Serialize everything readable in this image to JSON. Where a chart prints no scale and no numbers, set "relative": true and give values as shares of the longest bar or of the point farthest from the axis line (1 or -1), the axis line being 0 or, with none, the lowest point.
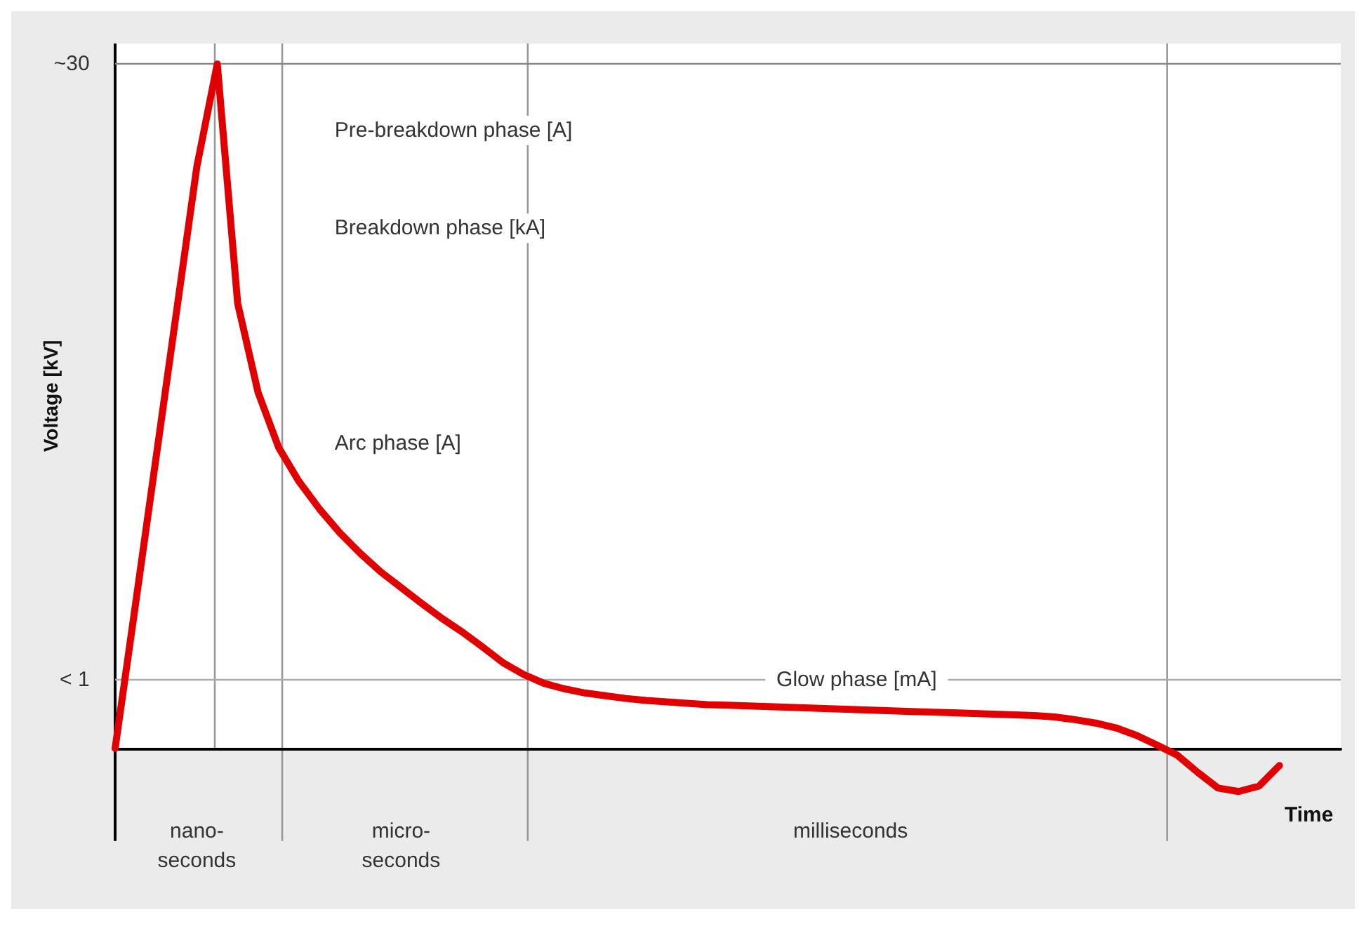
{
  "chart_data": {
    "type": "line",
    "relative": true,
    "xlabel": "Time",
    "ylabel": "Voltage [kV]",
    "categories": [
      null,
      null,
      null,
      null,
      "nano-\nseconds",
      null,
      null,
      null,
      null,
      null,
      null,
      null,
      null,
      null,
      "micro-\nseconds",
      null,
      null,
      null,
      null,
      null,
      null,
      null,
      null,
      null,
      null,
      null,
      null,
      null,
      null,
      null,
      null,
      null,
      null,
      null,
      null,
      null,
      "milliseconds",
      null,
      null,
      null,
      null,
      null,
      null,
      null,
      null,
      null,
      null,
      null,
      null,
      null,
      null,
      null,
      null,
      null,
      null,
      null,
      null,
      null,
      null,
      null,
      null
    ],
    "series": [
      {
        "color": "#e00000",
        "values": [
          0,
          0.211,
          0.424,
          0.637,
          0.85,
          1.0,
          0.65,
          0.52,
          0.44,
          0.39,
          0.35,
          0.315,
          0.285,
          0.258,
          0.235,
          0.212,
          0.19,
          0.17,
          0.148,
          0.125,
          0.108,
          0.095,
          0.087,
          0.081,
          0.077,
          0.073,
          0.07,
          0.068,
          0.066,
          0.064,
          0.063,
          0.062,
          0.061,
          0.06,
          0.059,
          0.058,
          0.057,
          0.056,
          0.055,
          0.054,
          0.053,
          0.052,
          0.051,
          0.05,
          0.049,
          0.048,
          0.046,
          0.042,
          0.037,
          0.03,
          0.019,
          0.005,
          -0.01,
          -0.035,
          -0.058,
          -0.063,
          -0.055,
          -0.025,
          null,
          null,
          null
        ]
      }
    ],
    "tick_labels": "x",
    "grid": false,
    "marker": "none",
    "line_style": "solid",
    "ref_lines": [
      {
        "axis": "y",
        "value": 1,
        "color": "#888888"
      },
      {
        "axis": "y",
        "value": 0.1,
        "color": "#aaaaaa"
      }
    ],
    "annotations": [
      "~30",
      "< 1",
      "Pre-breakdown phase [A]",
      "Breakdown phase [kA]",
      "Arc phase [A]",
      "Glow phase [mA]"
    ]
  }
}
